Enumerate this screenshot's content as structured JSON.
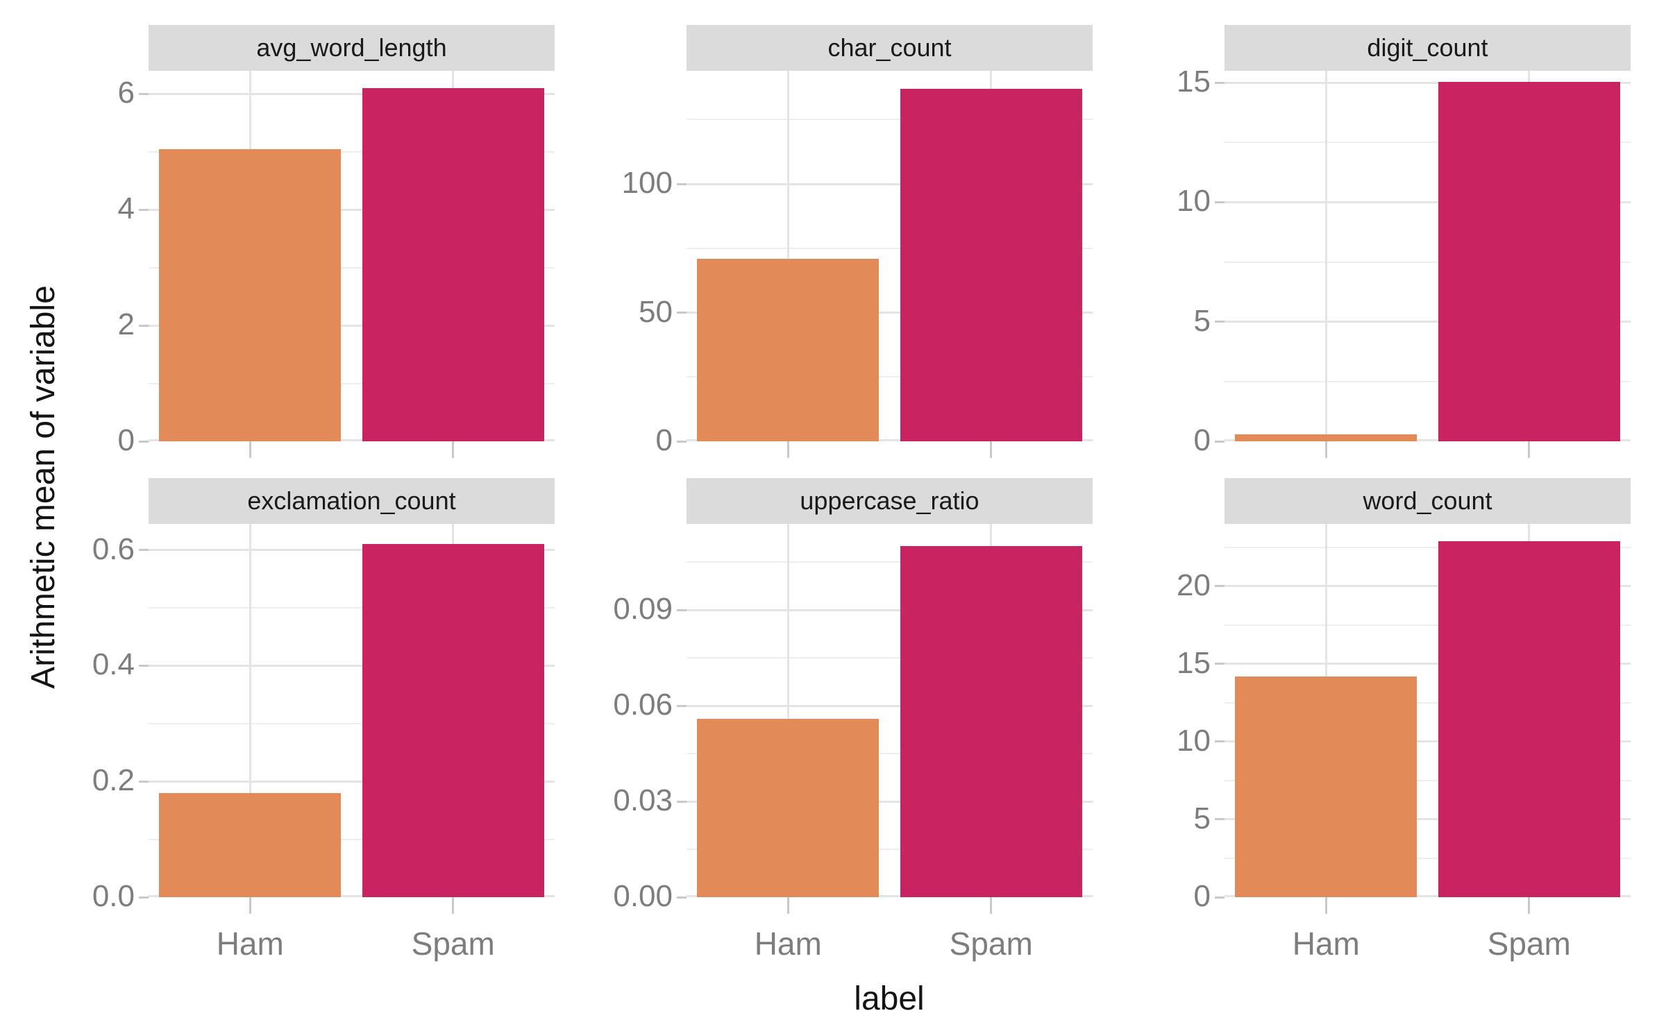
{
  "figure": {
    "y_axis_title": "Arithmetic mean of variable",
    "x_axis_title": "label",
    "colors": {
      "ham_bar": "#E28A58",
      "spam_bar": "#C92361",
      "strip_background": "#DBDBDB",
      "grid_major": "#E4E4E4",
      "grid_minor": "#EEEEEE",
      "axis_text": "#7D7D7D",
      "title_text": "#141414"
    }
  },
  "chart_data": {
    "type": "bar",
    "layout": "facet_wrap 2 rows x 3 cols, free y scales",
    "categories": [
      "Ham",
      "Spam"
    ],
    "xlabel": "label",
    "ylabel": "Arithmetic mean of variable",
    "legend": "none",
    "grid": "on",
    "panels": [
      {
        "title": "avg_word_length",
        "values": [
          5.05,
          6.1
        ],
        "ylim": [
          0,
          6.4
        ],
        "yticks": [
          {
            "v": 0,
            "label": "0"
          },
          {
            "v": 2,
            "label": "2"
          },
          {
            "v": 4,
            "label": "4"
          },
          {
            "v": 6,
            "label": "6"
          }
        ],
        "minor_ticks": [
          1,
          3,
          5
        ]
      },
      {
        "title": "char_count",
        "values": [
          71,
          137
        ],
        "ylim": [
          0,
          144
        ],
        "yticks": [
          {
            "v": 0,
            "label": "0"
          },
          {
            "v": 50,
            "label": "50"
          },
          {
            "v": 100,
            "label": "100"
          }
        ],
        "minor_ticks": [
          25,
          75,
          125
        ]
      },
      {
        "title": "digit_count",
        "values": [
          0.3,
          15.03
        ],
        "ylim": [
          0,
          15.5
        ],
        "yticks": [
          {
            "v": 0,
            "label": "0"
          },
          {
            "v": 5,
            "label": "5"
          },
          {
            "v": 10,
            "label": "10"
          },
          {
            "v": 15,
            "label": "15"
          }
        ],
        "minor_ticks": [
          2.5,
          7.5,
          12.5
        ]
      },
      {
        "title": "exclamation_count",
        "values": [
          0.18,
          0.61
        ],
        "ylim": [
          0,
          0.645
        ],
        "yticks": [
          {
            "v": 0,
            "label": "0.0"
          },
          {
            "v": 0.2,
            "label": "0.2"
          },
          {
            "v": 0.4,
            "label": "0.4"
          },
          {
            "v": 0.6,
            "label": "0.6"
          }
        ],
        "minor_ticks": [
          0.1,
          0.3,
          0.5
        ]
      },
      {
        "title": "uppercase_ratio",
        "values": [
          0.056,
          0.11
        ],
        "ylim": [
          0,
          0.117
        ],
        "yticks": [
          {
            "v": 0,
            "label": "0.00"
          },
          {
            "v": 0.03,
            "label": "0.03"
          },
          {
            "v": 0.06,
            "label": "0.06"
          },
          {
            "v": 0.09,
            "label": "0.09"
          }
        ],
        "minor_ticks": [
          0.015,
          0.045,
          0.075,
          0.105
        ]
      },
      {
        "title": "word_count",
        "values": [
          14.2,
          22.9
        ],
        "ylim": [
          0,
          24
        ],
        "yticks": [
          {
            "v": 0,
            "label": "0"
          },
          {
            "v": 5,
            "label": "5"
          },
          {
            "v": 10,
            "label": "10"
          },
          {
            "v": 15,
            "label": "15"
          },
          {
            "v": 20,
            "label": "20"
          }
        ],
        "minor_ticks": [
          2.5,
          7.5,
          12.5,
          17.5,
          22.5
        ]
      }
    ]
  }
}
